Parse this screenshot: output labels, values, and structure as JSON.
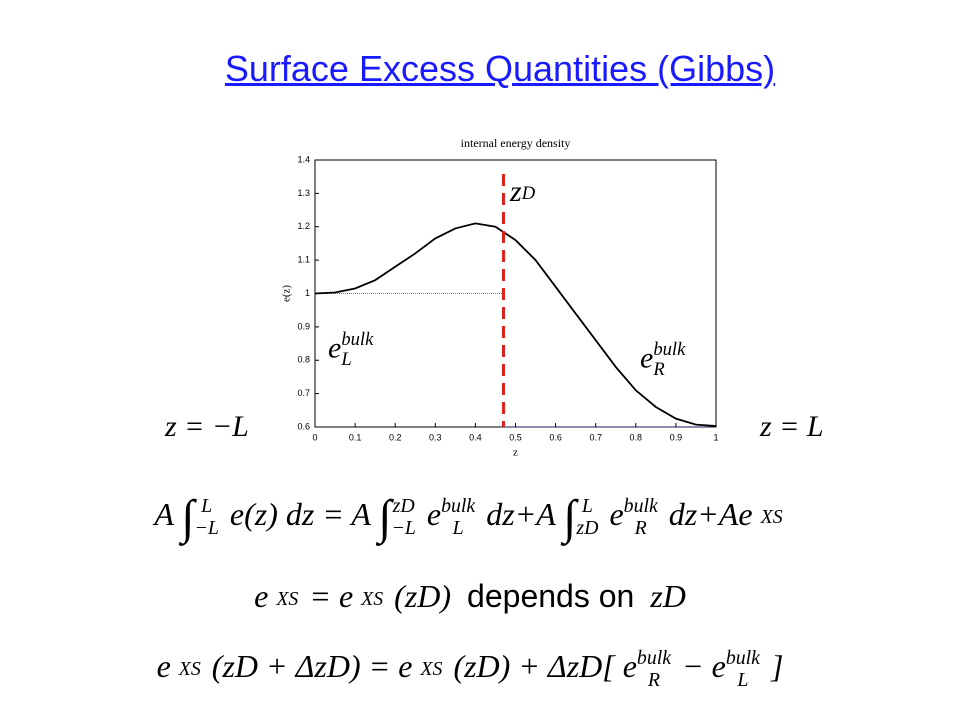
{
  "title": "Surface Excess Quantities (Gibbs)",
  "chart_data": {
    "type": "line",
    "title": "internal energy density",
    "x_label": "z",
    "y_label": "e(z)",
    "series": [
      {
        "name": "e(z)",
        "color": "#000000",
        "x": [
          0,
          0.05,
          0.1,
          0.15,
          0.2,
          0.25,
          0.3,
          0.35,
          0.4,
          0.45,
          0.5,
          0.55,
          0.6,
          0.65,
          0.7,
          0.75,
          0.8,
          0.85,
          0.9,
          0.95,
          1
        ],
        "values": [
          1.0,
          1.003,
          1.015,
          1.04,
          1.08,
          1.12,
          1.165,
          1.195,
          1.21,
          1.2,
          1.16,
          1.1,
          1.02,
          0.94,
          0.86,
          0.78,
          0.71,
          0.66,
          0.625,
          0.607,
          0.603
        ]
      }
    ],
    "xlim": [
      0,
      1
    ],
    "ylim": [
      0.6,
      1.4
    ],
    "xticks": [
      0,
      0.1,
      0.2,
      0.3,
      0.4,
      0.5,
      0.6,
      0.7,
      0.8,
      0.9,
      1
    ],
    "yticks": [
      0.6,
      0.7,
      0.8,
      0.9,
      1,
      1.1,
      1.2,
      1.3,
      1.4
    ],
    "dividing_line": {
      "x": 0.47,
      "color": "#e0201b"
    },
    "bulk_lines": [
      {
        "y": 1,
        "x": [
          0,
          0.47
        ]
      },
      {
        "y": 0.6,
        "x": [
          0.47,
          1
        ]
      }
    ]
  },
  "labels": {
    "zD": {
      "base": "z",
      "sub": "D"
    },
    "eL": {
      "base": "e",
      "sup": "bulk",
      "sub": "L"
    },
    "eR": {
      "base": "e",
      "sup": "bulk",
      "sub": "R"
    },
    "left": "z = −L",
    "right": "z = L"
  },
  "equations": [
    [
      "A",
      {
        "base": "∫",
        "sup": "L",
        "sub": "−L"
      },
      "e(z) dz = A",
      {
        "base": "∫",
        "sup": "zD",
        "sub": "−L"
      },
      {
        "base": "e",
        "sup": "bulk",
        "sub": "L"
      },
      "dz+A",
      {
        "base": "∫",
        "sup": "L",
        "sub": "zD"
      },
      {
        "base": "e",
        "sup": "bulk",
        "sub": "R"
      },
      "dz+Ae",
      {
        "base": "",
        "sup": "XS"
      }
    ],
    [
      "e",
      {
        "base": "",
        "sup": "XS"
      },
      "= e",
      {
        "base": "",
        "sup": "XS"
      },
      "(zD)",
      {
        "text": "depends on"
      },
      "zD"
    ],
    [
      "e",
      {
        "base": "",
        "sup": "XS"
      },
      "(zD + ΔzD) = e",
      {
        "base": "",
        "sup": "XS"
      },
      "(zD) + ΔzD[",
      {
        "base": "e",
        "sup": "bulk",
        "sub": "R"
      },
      "−",
      {
        "base": "e",
        "sup": "bulk",
        "sub": "L"
      },
      "]"
    ]
  ]
}
